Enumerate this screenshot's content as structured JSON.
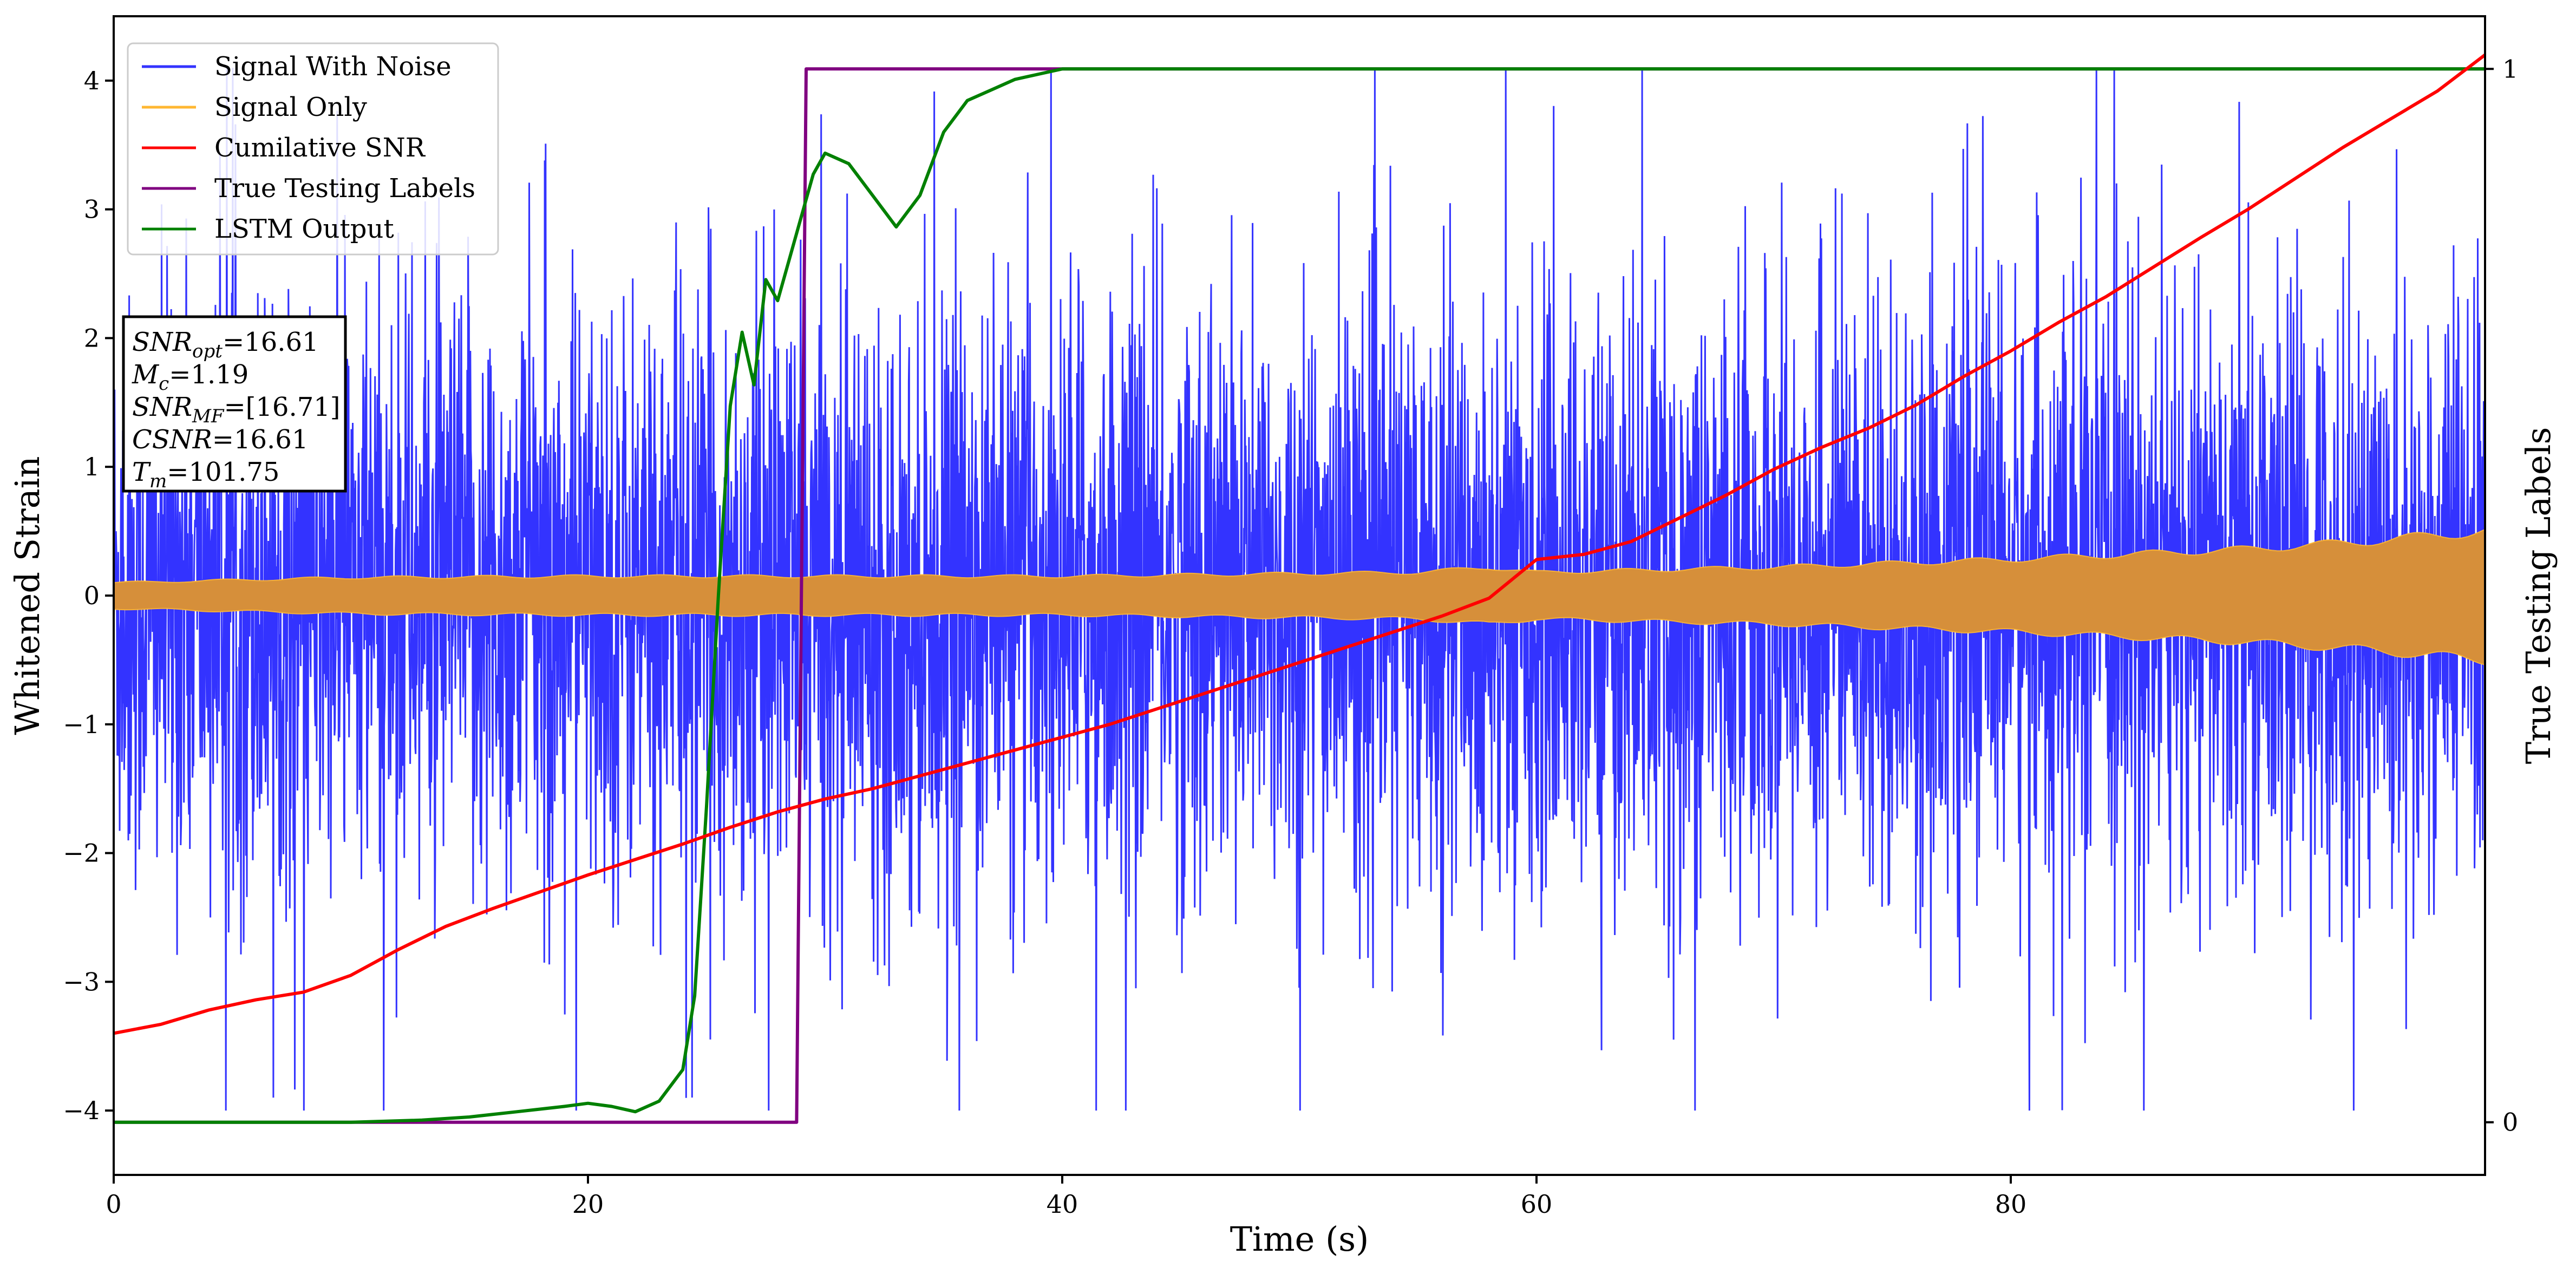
{
  "chart_data": {
    "type": "line",
    "xlabel": "Time (s)",
    "ylabel": "Whitened Strain",
    "ylabel_right": "True Testing Labels",
    "xlim": [
      0,
      100
    ],
    "ylim": [
      -4.5,
      4.5
    ],
    "ylim_right": [
      -0.05,
      1.05
    ],
    "x_ticks": [
      "0",
      "20",
      "40",
      "60",
      "80"
    ],
    "y_ticks": [
      "−4",
      "−3",
      "−2",
      "−1",
      "0",
      "1",
      "2",
      "3",
      "4"
    ],
    "y_ticks_right": [
      "0",
      "1"
    ],
    "grid": false,
    "legend_position": "top-left",
    "legend": [
      {
        "label": "Signal With Noise",
        "color": "#3333ff"
      },
      {
        "label": "Signal Only",
        "color": "#ffb732"
      },
      {
        "label": "Cumilative SNR",
        "color": "#ff0000"
      },
      {
        "label": "True Testing Labels",
        "color": "#800080"
      },
      {
        "label": "LSTM Output",
        "color": "#008000"
      }
    ],
    "annotation": [
      {
        "name": "SNR",
        "sub": "opt",
        "value": "=16.61"
      },
      {
        "name": "M",
        "sub": "c",
        "value": "=1.19"
      },
      {
        "name": "SNR",
        "sub": "MF",
        "value": "=[16.71]"
      },
      {
        "name": "CSNR",
        "sub": "",
        "value": "=16.61"
      },
      {
        "name": "T",
        "sub": "m",
        "value": "=101.75"
      }
    ],
    "series": [
      {
        "name": "Signal With Noise",
        "axis": "left",
        "color": "#3333ff",
        "description_values": {
          "approx_range": [
            -4.0,
            4.1
          ],
          "typical_std": 1.0
        }
      },
      {
        "name": "Signal Only",
        "axis": "left",
        "color": "#ffb732",
        "envelope_x": [
          0,
          10,
          20,
          30,
          40,
          50,
          55,
          58,
          60,
          65,
          70,
          75,
          80,
          85,
          90,
          95,
          100
        ],
        "envelope_y": [
          0.1,
          0.14,
          0.15,
          0.15,
          0.15,
          0.17,
          0.18,
          0.22,
          0.18,
          0.2,
          0.22,
          0.25,
          0.28,
          0.32,
          0.36,
          0.42,
          0.5
        ]
      },
      {
        "name": "Cumilative SNR",
        "axis": "left",
        "color": "#ff0000",
        "x": [
          0,
          2,
          4,
          6,
          8,
          10,
          12,
          14,
          16,
          18,
          20,
          22,
          24,
          26,
          28,
          30,
          32,
          34,
          36,
          38,
          40,
          42,
          44,
          46,
          48,
          50,
          52,
          54,
          56,
          58,
          60,
          62,
          64,
          66,
          68,
          70,
          72,
          74,
          76,
          78,
          80,
          82,
          84,
          86,
          88,
          90,
          92,
          94,
          96,
          98,
          100
        ],
        "y": [
          -3.4,
          -3.33,
          -3.22,
          -3.14,
          -3.08,
          -2.95,
          -2.75,
          -2.57,
          -2.43,
          -2.3,
          -2.17,
          -2.05,
          -1.93,
          -1.8,
          -1.68,
          -1.58,
          -1.5,
          -1.4,
          -1.3,
          -1.2,
          -1.1,
          -1.0,
          -0.88,
          -0.76,
          -0.64,
          -0.52,
          -0.4,
          -0.28,
          -0.16,
          -0.02,
          0.28,
          0.32,
          0.42,
          0.6,
          0.78,
          0.98,
          1.15,
          1.3,
          1.48,
          1.7,
          1.9,
          2.12,
          2.32,
          2.55,
          2.78,
          3.0,
          3.24,
          3.48,
          3.7,
          3.92,
          4.2
        ]
      },
      {
        "name": "True Testing Labels",
        "axis": "right",
        "color": "#800080",
        "x": [
          0,
          28.8,
          29.2,
          100
        ],
        "y": [
          0,
          0,
          1,
          1
        ]
      },
      {
        "name": "LSTM Output",
        "axis": "right",
        "color": "#008000",
        "x": [
          0,
          5,
          10,
          13,
          15,
          17,
          19,
          20,
          21,
          22,
          23,
          24,
          24.5,
          25,
          25.5,
          26,
          26.5,
          27,
          27.5,
          28,
          28.5,
          29,
          29.5,
          30,
          31,
          32,
          33,
          34,
          35,
          36,
          37,
          38,
          39,
          40,
          45,
          50,
          55,
          100
        ],
        "y": [
          0,
          0,
          0,
          0.002,
          0.005,
          0.01,
          0.015,
          0.018,
          0.015,
          0.01,
          0.02,
          0.05,
          0.12,
          0.3,
          0.5,
          0.68,
          0.75,
          0.7,
          0.8,
          0.78,
          0.82,
          0.86,
          0.9,
          0.92,
          0.91,
          0.88,
          0.85,
          0.88,
          0.94,
          0.97,
          0.98,
          0.99,
          0.995,
          1.0,
          1.0,
          1.0,
          1.0,
          1.0
        ]
      }
    ]
  }
}
